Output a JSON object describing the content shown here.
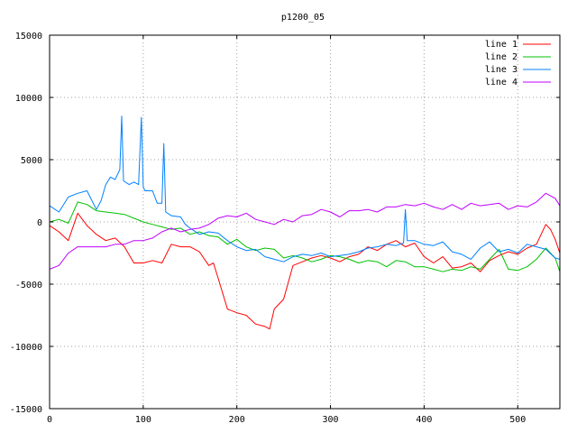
{
  "chart_data": {
    "type": "line",
    "title": "p1200_05",
    "xlabel": "",
    "ylabel": "",
    "xlim": [
      0,
      545
    ],
    "ylim": [
      -15000,
      15000
    ],
    "xticks": [
      0,
      100,
      200,
      300,
      400,
      500
    ],
    "yticks": [
      -15000,
      -10000,
      -5000,
      0,
      5000,
      10000,
      15000
    ],
    "grid": true,
    "legend_position": "top-right",
    "series": [
      {
        "name": "line 1",
        "color": "#ff0000",
        "x": [
          0,
          10,
          20,
          30,
          40,
          50,
          60,
          70,
          80,
          90,
          100,
          110,
          120,
          130,
          140,
          150,
          160,
          170,
          175,
          180,
          190,
          200,
          210,
          220,
          230,
          235,
          240,
          250,
          260,
          270,
          280,
          290,
          300,
          310,
          320,
          330,
          340,
          350,
          360,
          370,
          380,
          390,
          400,
          410,
          420,
          430,
          440,
          450,
          460,
          470,
          480,
          490,
          500,
          510,
          520,
          530,
          535,
          540,
          545
        ],
        "y": [
          -300,
          -800,
          -1500,
          700,
          -300,
          -1000,
          -1500,
          -1300,
          -2000,
          -3300,
          -3300,
          -3100,
          -3300,
          -1800,
          -2000,
          -2000,
          -2400,
          -3500,
          -3300,
          -4500,
          -7000,
          -7300,
          -7500,
          -8200,
          -8400,
          -8600,
          -7000,
          -6200,
          -3500,
          -3200,
          -2900,
          -2700,
          -2900,
          -3200,
          -2800,
          -2600,
          -2000,
          -2300,
          -1800,
          -1500,
          -2000,
          -1700,
          -2800,
          -3300,
          -2800,
          -3700,
          -3600,
          -3300,
          -4000,
          -3100,
          -2700,
          -2400,
          -2600,
          -2100,
          -1800,
          -200,
          -600,
          -1400,
          -2500
        ]
      },
      {
        "name": "line 2",
        "color": "#00c000",
        "x": [
          0,
          10,
          20,
          30,
          40,
          50,
          60,
          70,
          80,
          90,
          100,
          110,
          120,
          130,
          140,
          150,
          160,
          170,
          180,
          190,
          200,
          210,
          220,
          230,
          240,
          250,
          260,
          270,
          280,
          290,
          300,
          310,
          320,
          330,
          340,
          350,
          360,
          370,
          380,
          390,
          400,
          410,
          420,
          430,
          440,
          450,
          460,
          470,
          480,
          490,
          500,
          510,
          520,
          530,
          540,
          545
        ],
        "y": [
          0,
          200,
          -100,
          1600,
          1400,
          900,
          800,
          700,
          600,
          300,
          0,
          -200,
          -400,
          -600,
          -500,
          -1000,
          -800,
          -1100,
          -1200,
          -1800,
          -1400,
          -2000,
          -2300,
          -2100,
          -2200,
          -2900,
          -2700,
          -2900,
          -3200,
          -3000,
          -2700,
          -2800,
          -3000,
          -3300,
          -3100,
          -3200,
          -3600,
          -3100,
          -3200,
          -3600,
          -3600,
          -3800,
          -4000,
          -3800,
          -3900,
          -3600,
          -3800,
          -3000,
          -2200,
          -3800,
          -3900,
          -3600,
          -3000,
          -2100,
          -2900,
          -4000
        ]
      },
      {
        "name": "line 3",
        "color": "#0080ff",
        "x": [
          0,
          10,
          20,
          30,
          40,
          50,
          55,
          60,
          65,
          70,
          75,
          77,
          79,
          85,
          90,
          95,
          98,
          100,
          102,
          110,
          115,
          120,
          122,
          124,
          130,
          140,
          145,
          150,
          160,
          170,
          180,
          190,
          200,
          210,
          220,
          230,
          240,
          250,
          260,
          270,
          280,
          290,
          300,
          310,
          320,
          330,
          340,
          350,
          360,
          370,
          378,
          380,
          382,
          390,
          400,
          410,
          420,
          430,
          440,
          450,
          460,
          470,
          480,
          490,
          500,
          510,
          520,
          530,
          540,
          545
        ],
        "y": [
          1300,
          800,
          2000,
          2300,
          2500,
          1000,
          1700,
          3000,
          3600,
          3400,
          4200,
          8500,
          3300,
          3000,
          3200,
          3000,
          8400,
          2800,
          2500,
          2500,
          1500,
          1500,
          6300,
          800,
          500,
          400,
          -200,
          -500,
          -1000,
          -800,
          -900,
          -1500,
          -2000,
          -2300,
          -2200,
          -2800,
          -3000,
          -3200,
          -2800,
          -2600,
          -2700,
          -2500,
          -2800,
          -2700,
          -2600,
          -2400,
          -2100,
          -2000,
          -1800,
          -1900,
          -1700,
          1000,
          -1500,
          -1500,
          -1800,
          -1900,
          -1600,
          -2400,
          -2600,
          -3000,
          -2100,
          -1600,
          -2400,
          -2200,
          -2500,
          -1800,
          -2000,
          -2200,
          -2900,
          -3000
        ]
      },
      {
        "name": "line 4",
        "color": "#c000ff",
        "x": [
          0,
          10,
          20,
          30,
          40,
          50,
          60,
          70,
          80,
          90,
          100,
          110,
          120,
          130,
          140,
          150,
          160,
          170,
          180,
          190,
          200,
          210,
          220,
          230,
          240,
          250,
          260,
          270,
          280,
          290,
          300,
          310,
          320,
          330,
          340,
          350,
          360,
          370,
          380,
          390,
          400,
          410,
          420,
          430,
          440,
          450,
          460,
          470,
          480,
          490,
          500,
          510,
          520,
          530,
          540,
          545
        ],
        "y": [
          -3800,
          -3500,
          -2500,
          -2000,
          -2000,
          -2000,
          -2000,
          -1800,
          -1800,
          -1500,
          -1500,
          -1300,
          -800,
          -500,
          -800,
          -600,
          -500,
          -200,
          300,
          500,
          400,
          700,
          200,
          0,
          -200,
          200,
          0,
          500,
          600,
          1000,
          800,
          400,
          900,
          900,
          1000,
          800,
          1200,
          1200,
          1400,
          1300,
          1500,
          1200,
          1000,
          1400,
          1000,
          1500,
          1300,
          1400,
          1500,
          1000,
          1300,
          1200,
          1600,
          2300,
          1900,
          1300
        ]
      }
    ]
  }
}
